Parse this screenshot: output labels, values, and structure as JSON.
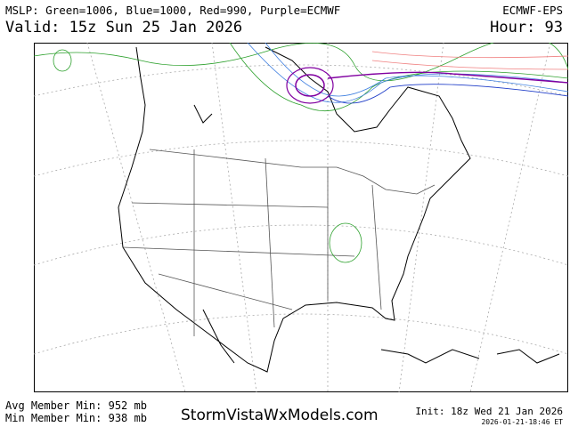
{
  "header": {
    "legend": "MSLP: Green=1006, Blue=1000, Red=990, Purple=ECMWF",
    "model": "ECMWF-EPS",
    "valid": "Valid: 15z Sun 25 Jan 2026",
    "hour": "Hour: 93"
  },
  "footer": {
    "avg_min": "Avg Member Min: 952 mb",
    "min_min": "Min Member Min: 938 mb",
    "site": "StormVistaWxModels.com",
    "init": "Init: 18z Wed 21 Jan 2026",
    "timestamp": "2026-01-21-18:46 ET"
  }
}
